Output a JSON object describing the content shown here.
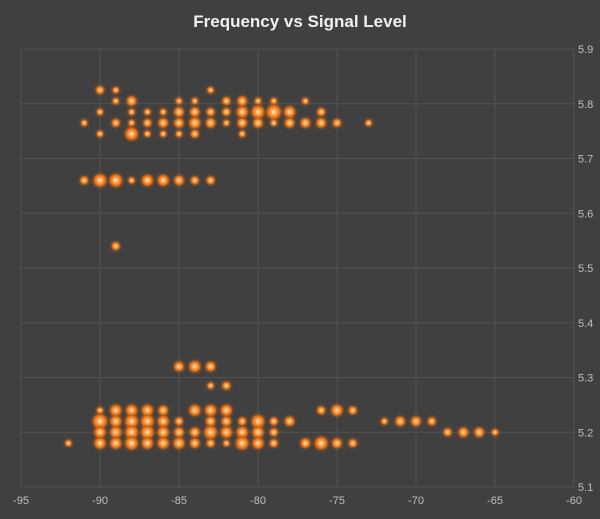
{
  "chart_data": {
    "type": "bubble",
    "title": "Frequency vs Signal Level",
    "xlabel": "",
    "ylabel": "",
    "xlim": [
      -95,
      -60
    ],
    "ylim": [
      5.1,
      5.9
    ],
    "xticks": [
      -95,
      -90,
      -85,
      -80,
      -75,
      -70,
      -65,
      -60
    ],
    "yticks": [
      5.1,
      5.2,
      5.3,
      5.4,
      5.5,
      5.6,
      5.7,
      5.8,
      5.9
    ],
    "xtick_labels": [
      "-95",
      "-90",
      "-85",
      "-80",
      "-75",
      "-70",
      "-65",
      "-60"
    ],
    "ytick_labels": [
      "5.1",
      "5.2",
      "5.3",
      "5.4",
      "5.5",
      "5.6",
      "5.7",
      "5.8",
      "5.9"
    ],
    "grid": "major-both",
    "y_axis_side": "right",
    "legend": "none",
    "colors": {
      "bubble_fill": "#e8761c",
      "bubble_glow": "#ff9a33",
      "bubble_core": "#ffd9a8",
      "background": "#404040",
      "grid": "#525252",
      "text": "#bfbfbf"
    },
    "series": [
      {
        "points": [
          {
            "x": -90,
            "y": 5.825,
            "s": 1.5
          },
          {
            "x": -89,
            "y": 5.825,
            "s": 1
          },
          {
            "x": -83,
            "y": 5.825,
            "s": 1
          },
          {
            "x": -89,
            "y": 5.805,
            "s": 1
          },
          {
            "x": -88,
            "y": 5.805,
            "s": 2
          },
          {
            "x": -85,
            "y": 5.805,
            "s": 1
          },
          {
            "x": -84,
            "y": 5.805,
            "s": 1
          },
          {
            "x": -82,
            "y": 5.805,
            "s": 1.5
          },
          {
            "x": -81,
            "y": 5.805,
            "s": 2
          },
          {
            "x": -80,
            "y": 5.805,
            "s": 1
          },
          {
            "x": -79,
            "y": 5.805,
            "s": 1
          },
          {
            "x": -77,
            "y": 5.805,
            "s": 1
          },
          {
            "x": -90,
            "y": 5.785,
            "s": 1
          },
          {
            "x": -88,
            "y": 5.785,
            "s": 1
          },
          {
            "x": -87,
            "y": 5.785,
            "s": 1
          },
          {
            "x": -86,
            "y": 5.785,
            "s": 1
          },
          {
            "x": -85,
            "y": 5.785,
            "s": 2
          },
          {
            "x": -84,
            "y": 5.785,
            "s": 2
          },
          {
            "x": -83,
            "y": 5.785,
            "s": 1.5
          },
          {
            "x": -82,
            "y": 5.785,
            "s": 1.5
          },
          {
            "x": -81,
            "y": 5.785,
            "s": 2.5
          },
          {
            "x": -80,
            "y": 5.785,
            "s": 3
          },
          {
            "x": -79,
            "y": 5.785,
            "s": 3.5
          },
          {
            "x": -78,
            "y": 5.785,
            "s": 2.5
          },
          {
            "x": -76,
            "y": 5.785,
            "s": 1.5
          },
          {
            "x": -91,
            "y": 5.765,
            "s": 1
          },
          {
            "x": -89,
            "y": 5.765,
            "s": 1.5
          },
          {
            "x": -88,
            "y": 5.765,
            "s": 1
          },
          {
            "x": -87,
            "y": 5.765,
            "s": 1.5
          },
          {
            "x": -86,
            "y": 5.765,
            "s": 2
          },
          {
            "x": -85,
            "y": 5.765,
            "s": 2
          },
          {
            "x": -84,
            "y": 5.765,
            "s": 2.5
          },
          {
            "x": -83,
            "y": 5.765,
            "s": 2
          },
          {
            "x": -82,
            "y": 5.765,
            "s": 1
          },
          {
            "x": -81,
            "y": 5.765,
            "s": 2
          },
          {
            "x": -80,
            "y": 5.765,
            "s": 2
          },
          {
            "x": -79,
            "y": 5.765,
            "s": 1
          },
          {
            "x": -78,
            "y": 5.765,
            "s": 2
          },
          {
            "x": -77,
            "y": 5.765,
            "s": 2
          },
          {
            "x": -76,
            "y": 5.765,
            "s": 2
          },
          {
            "x": -75,
            "y": 5.765,
            "s": 1.5
          },
          {
            "x": -73,
            "y": 5.765,
            "s": 1
          },
          {
            "x": -90,
            "y": 5.745,
            "s": 1
          },
          {
            "x": -88,
            "y": 5.745,
            "s": 3
          },
          {
            "x": -87,
            "y": 5.745,
            "s": 1
          },
          {
            "x": -86,
            "y": 5.745,
            "s": 1
          },
          {
            "x": -85,
            "y": 5.745,
            "s": 1
          },
          {
            "x": -84,
            "y": 5.745,
            "s": 1.5
          },
          {
            "x": -81,
            "y": 5.745,
            "s": 1
          },
          {
            "x": -91,
            "y": 5.66,
            "s": 1.5
          },
          {
            "x": -90,
            "y": 5.66,
            "s": 3
          },
          {
            "x": -89,
            "y": 5.66,
            "s": 3
          },
          {
            "x": -88,
            "y": 5.66,
            "s": 1
          },
          {
            "x": -87,
            "y": 5.66,
            "s": 2.5
          },
          {
            "x": -86,
            "y": 5.66,
            "s": 2.5
          },
          {
            "x": -85,
            "y": 5.66,
            "s": 2
          },
          {
            "x": -84,
            "y": 5.66,
            "s": 1.5
          },
          {
            "x": -83,
            "y": 5.66,
            "s": 1.5
          },
          {
            "x": -89,
            "y": 5.54,
            "s": 1.5
          },
          {
            "x": -85,
            "y": 5.32,
            "s": 2
          },
          {
            "x": -84,
            "y": 5.32,
            "s": 2.5
          },
          {
            "x": -83,
            "y": 5.32,
            "s": 2
          },
          {
            "x": -83,
            "y": 5.285,
            "s": 1
          },
          {
            "x": -82,
            "y": 5.285,
            "s": 1.5
          },
          {
            "x": -90,
            "y": 5.24,
            "s": 1
          },
          {
            "x": -89,
            "y": 5.24,
            "s": 2.5
          },
          {
            "x": -88,
            "y": 5.24,
            "s": 2.5
          },
          {
            "x": -87,
            "y": 5.24,
            "s": 2.5
          },
          {
            "x": -86,
            "y": 5.24,
            "s": 2
          },
          {
            "x": -84,
            "y": 5.24,
            "s": 2.5
          },
          {
            "x": -83,
            "y": 5.24,
            "s": 2.5
          },
          {
            "x": -82,
            "y": 5.24,
            "s": 2.5
          },
          {
            "x": -76,
            "y": 5.24,
            "s": 1.5
          },
          {
            "x": -75,
            "y": 5.24,
            "s": 2.5
          },
          {
            "x": -74,
            "y": 5.24,
            "s": 1.5
          },
          {
            "x": -90,
            "y": 5.22,
            "s": 3.5
          },
          {
            "x": -89,
            "y": 5.22,
            "s": 2.5
          },
          {
            "x": -88,
            "y": 5.22,
            "s": 3
          },
          {
            "x": -87,
            "y": 5.22,
            "s": 3
          },
          {
            "x": -86,
            "y": 5.22,
            "s": 2.5
          },
          {
            "x": -85,
            "y": 5.22,
            "s": 1.5
          },
          {
            "x": -83,
            "y": 5.22,
            "s": 2
          },
          {
            "x": -82,
            "y": 5.22,
            "s": 2
          },
          {
            "x": -81,
            "y": 5.22,
            "s": 1.5
          },
          {
            "x": -80,
            "y": 5.22,
            "s": 3
          },
          {
            "x": -79,
            "y": 5.22,
            "s": 1.5
          },
          {
            "x": -78,
            "y": 5.22,
            "s": 2
          },
          {
            "x": -72,
            "y": 5.22,
            "s": 1
          },
          {
            "x": -71,
            "y": 5.22,
            "s": 2
          },
          {
            "x": -70,
            "y": 5.22,
            "s": 2
          },
          {
            "x": -69,
            "y": 5.22,
            "s": 1.5
          },
          {
            "x": -90,
            "y": 5.2,
            "s": 2.5
          },
          {
            "x": -89,
            "y": 5.2,
            "s": 2.5
          },
          {
            "x": -88,
            "y": 5.2,
            "s": 3
          },
          {
            "x": -87,
            "y": 5.2,
            "s": 3
          },
          {
            "x": -86,
            "y": 5.2,
            "s": 2.5
          },
          {
            "x": -85,
            "y": 5.2,
            "s": 2
          },
          {
            "x": -84,
            "y": 5.2,
            "s": 2
          },
          {
            "x": -83,
            "y": 5.2,
            "s": 3
          },
          {
            "x": -82,
            "y": 5.2,
            "s": 2.5
          },
          {
            "x": -81,
            "y": 5.2,
            "s": 2.5
          },
          {
            "x": -80,
            "y": 5.2,
            "s": 2.5
          },
          {
            "x": -79,
            "y": 5.2,
            "s": 1.5
          },
          {
            "x": -68,
            "y": 5.2,
            "s": 1.5
          },
          {
            "x": -67,
            "y": 5.2,
            "s": 2
          },
          {
            "x": -66,
            "y": 5.2,
            "s": 2
          },
          {
            "x": -65,
            "y": 5.2,
            "s": 1
          },
          {
            "x": -92,
            "y": 5.18,
            "s": 1
          },
          {
            "x": -90,
            "y": 5.18,
            "s": 2.5
          },
          {
            "x": -89,
            "y": 5.18,
            "s": 2.5
          },
          {
            "x": -88,
            "y": 5.18,
            "s": 3
          },
          {
            "x": -87,
            "y": 5.18,
            "s": 2.5
          },
          {
            "x": -86,
            "y": 5.18,
            "s": 2.5
          },
          {
            "x": -85,
            "y": 5.18,
            "s": 2.5
          },
          {
            "x": -84,
            "y": 5.18,
            "s": 2
          },
          {
            "x": -83,
            "y": 5.18,
            "s": 1.5
          },
          {
            "x": -82,
            "y": 5.18,
            "s": 1
          },
          {
            "x": -81,
            "y": 5.18,
            "s": 3
          },
          {
            "x": -80,
            "y": 5.18,
            "s": 2.5
          },
          {
            "x": -79,
            "y": 5.18,
            "s": 1.5
          },
          {
            "x": -77,
            "y": 5.18,
            "s": 2
          },
          {
            "x": -76,
            "y": 5.18,
            "s": 3
          },
          {
            "x": -75,
            "y": 5.18,
            "s": 2
          },
          {
            "x": -74,
            "y": 5.18,
            "s": 1.5
          }
        ]
      }
    ]
  }
}
